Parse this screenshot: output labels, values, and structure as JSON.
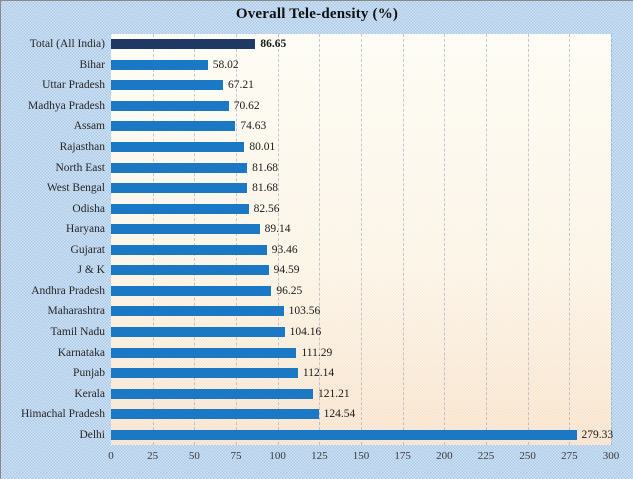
{
  "chart_data": {
    "type": "bar",
    "orientation": "horizontal",
    "title": "Overall Tele-density (%)",
    "categories": [
      "Total (All India)",
      "Bihar",
      "Uttar Pradesh",
      "Madhya Pradesh",
      "Assam",
      "Rajasthan",
      "North East",
      "West Bengal",
      "Odisha",
      "Haryana",
      "Gujarat",
      "J & K",
      "Andhra Pradesh",
      "Maharashtra",
      "Tamil Nadu",
      "Karnataka",
      "Punjab",
      "Kerala",
      "Himachal Pradesh",
      "Delhi"
    ],
    "values": [
      86.65,
      58.02,
      67.21,
      70.62,
      74.63,
      80.01,
      81.68,
      81.68,
      82.56,
      89.14,
      93.46,
      94.59,
      96.25,
      103.56,
      104.16,
      111.29,
      112.14,
      121.21,
      124.54,
      279.33
    ],
    "highlight_index": 0,
    "xlabel": "",
    "ylabel": "",
    "xlim": [
      0,
      300
    ],
    "xticks": [
      0,
      25,
      50,
      75,
      100,
      125,
      150,
      175,
      200,
      225,
      250,
      275,
      300
    ],
    "grid": "vertical-dashed",
    "legend": "none",
    "colors": {
      "bar": "#1b78c4",
      "highlight_bar": "#1f3864",
      "plot_bg_top": "#fdfbf1",
      "plot_bg_bottom": "#f7dcc0",
      "outer_bg": "#bdd5ee",
      "title_text": "#101010",
      "label_text": "#262626",
      "tick_text": "#3a3a3a"
    }
  }
}
